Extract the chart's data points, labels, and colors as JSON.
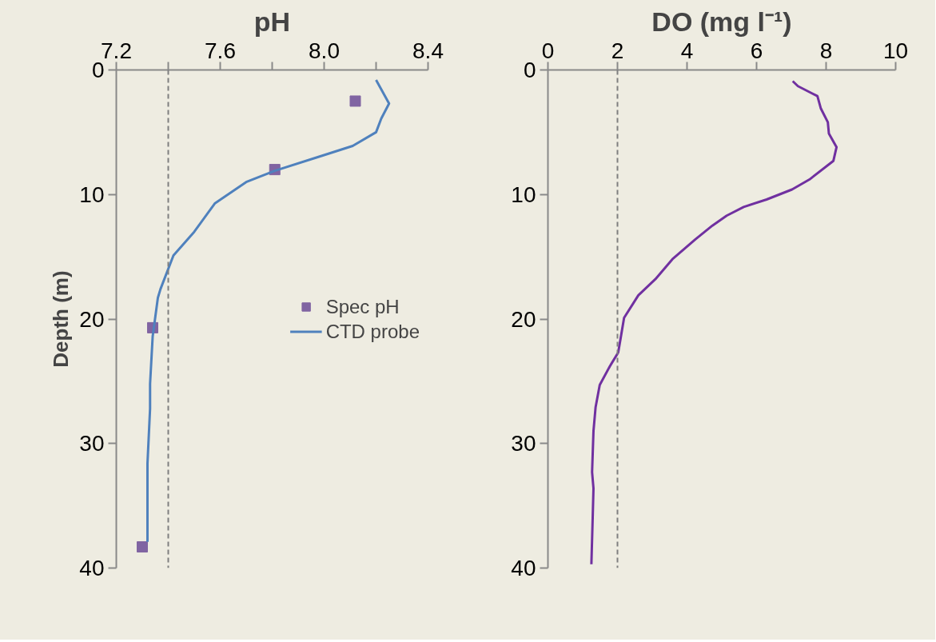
{
  "chart_data": [
    {
      "type": "line",
      "title": "pH",
      "ylabel": "Depth (m)",
      "xlim": [
        7.2,
        8.4
      ],
      "ylim": [
        40,
        0
      ],
      "xticks": [
        7.2,
        {
          "value": 7.4,
          "label": null
        },
        7.6,
        {
          "value": 7.8,
          "label": null
        },
        {
          "value": 8.0,
          "label": "8.0"
        },
        {
          "value": 8.2,
          "label": null
        },
        8.4
      ],
      "yticks": [
        0,
        10,
        20,
        30,
        40
      ],
      "grid": false,
      "legend": "right",
      "ref_lines": [
        {
          "axis": "x",
          "value": 7.4,
          "color": "#7f7f7f",
          "line_style": "dashed"
        }
      ],
      "series": [
        {
          "name": "Spec pH",
          "type": "scatter",
          "marker": "square",
          "color": "#8064a2",
          "x": [
            8.12,
            7.81,
            7.34,
            7.3
          ],
          "values": [
            2.5,
            8.0,
            20.7,
            38.3
          ]
        },
        {
          "name": "CTD probe",
          "color": "#4f81bd",
          "x": [
            8.2,
            8.25,
            8.22,
            8.2,
            8.11,
            7.99,
            7.81,
            7.7,
            7.58,
            7.5,
            7.42,
            7.37,
            7.36,
            7.34,
            7.33,
            7.33,
            7.32,
            7.32
          ],
          "values": [
            0.8,
            2.7,
            3.9,
            5.0,
            6.1,
            6.9,
            8.1,
            9.0,
            10.7,
            13.0,
            14.9,
            17.6,
            18.3,
            21.4,
            25.2,
            27.2,
            31.6,
            37.9
          ]
        }
      ]
    },
    {
      "type": "line",
      "title": "DO (mg l⁻¹)",
      "xlim": [
        0,
        10
      ],
      "ylim": [
        40,
        0
      ],
      "xticks": [
        0,
        2,
        4,
        6,
        8,
        10
      ],
      "yticks": [
        0,
        10,
        20,
        30,
        40
      ],
      "grid": false,
      "ref_lines": [
        {
          "axis": "x",
          "value": 2,
          "color": "#7f7f7f",
          "line_style": "dashed"
        }
      ],
      "series": [
        {
          "color": "#7030a0",
          "x": [
            7.04,
            7.19,
            7.75,
            7.85,
            8.05,
            8.08,
            8.3,
            8.21,
            7.52,
            7.02,
            6.29,
            5.63,
            5.14,
            4.73,
            4.24,
            3.58,
            3.09,
            2.6,
            2.19,
            2.07,
            2.02,
            1.78,
            1.49,
            1.37,
            1.31,
            1.27,
            1.31,
            1.29,
            1.25
          ],
          "values": [
            0.9,
            1.3,
            2.1,
            3.1,
            4.2,
            5.1,
            6.2,
            7.3,
            8.8,
            9.6,
            10.4,
            11.0,
            11.7,
            12.5,
            13.6,
            15.2,
            16.8,
            18.1,
            19.9,
            21.9,
            22.7,
            23.8,
            25.3,
            27.1,
            29.0,
            32.3,
            33.6,
            35.7,
            39.7
          ]
        }
      ]
    }
  ]
}
